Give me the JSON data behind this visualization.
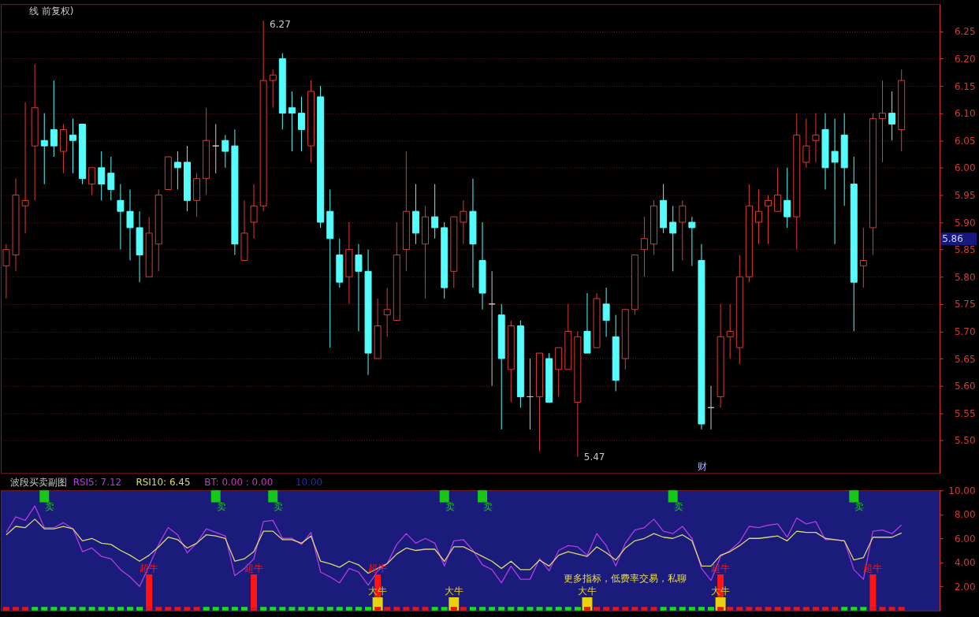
{
  "chart_data": [
    {
      "type": "candlestick",
      "title": "线 前复权)",
      "categories": [
        null,
        null,
        null,
        null,
        null,
        null,
        null,
        null,
        null,
        null,
        null,
        null,
        null,
        null,
        null,
        null,
        null,
        null,
        null,
        null,
        null,
        null,
        null,
        null,
        null,
        null,
        null,
        null,
        null,
        null,
        null,
        null,
        null,
        null,
        null,
        null,
        null,
        null,
        null,
        null,
        null,
        null,
        null,
        null,
        null,
        null,
        null,
        null,
        null,
        null,
        null,
        null,
        null,
        null,
        null,
        null,
        null,
        null,
        null,
        null,
        null,
        null,
        null,
        null,
        null,
        null,
        null,
        null,
        null,
        null,
        null,
        null,
        null,
        null,
        null,
        null,
        null,
        null,
        null,
        null,
        null,
        null,
        null,
        null,
        null,
        null,
        null,
        null,
        null,
        null,
        null,
        null,
        null,
        null,
        null
      ],
      "ohlc": [
        [
          5.82,
          5.86,
          5.76,
          5.85
        ],
        [
          5.84,
          5.98,
          5.81,
          5.95
        ],
        [
          5.93,
          6.12,
          5.88,
          5.94
        ],
        [
          6.04,
          6.19,
          5.94,
          6.11
        ],
        [
          6.05,
          6.1,
          5.97,
          6.04
        ],
        [
          6.07,
          6.16,
          6.02,
          6.04
        ],
        [
          6.03,
          6.08,
          5.99,
          6.07
        ],
        [
          6.06,
          6.09,
          5.99,
          6.05
        ],
        [
          6.08,
          6.08,
          5.97,
          5.98
        ],
        [
          5.97,
          6.0,
          5.95,
          6.0
        ],
        [
          6.0,
          6.03,
          5.94,
          5.97
        ],
        [
          5.99,
          6.02,
          5.94,
          5.96
        ],
        [
          5.94,
          5.97,
          5.85,
          5.92
        ],
        [
          5.92,
          5.96,
          5.83,
          5.89
        ],
        [
          5.89,
          5.92,
          5.79,
          5.84
        ],
        [
          5.8,
          5.91,
          5.8,
          5.88
        ],
        [
          5.86,
          5.96,
          5.81,
          5.95
        ],
        [
          5.96,
          6.02,
          5.96,
          6.02
        ],
        [
          6.01,
          6.03,
          5.96,
          6.0
        ],
        [
          6.01,
          6.04,
          5.92,
          5.94
        ],
        [
          5.94,
          5.99,
          5.91,
          5.98
        ],
        [
          5.98,
          6.11,
          5.95,
          6.05
        ],
        [
          6.04,
          6.08,
          5.99,
          6.04
        ],
        [
          6.05,
          6.06,
          6.0,
          6.03
        ],
        [
          6.04,
          6.07,
          5.84,
          5.86
        ],
        [
          5.83,
          5.94,
          5.83,
          5.88
        ],
        [
          5.9,
          5.97,
          5.87,
          5.93
        ],
        [
          5.93,
          6.27,
          5.92,
          6.16
        ],
        [
          6.16,
          6.18,
          6.11,
          6.17
        ],
        [
          6.2,
          6.21,
          6.07,
          6.1
        ],
        [
          6.11,
          6.14,
          6.03,
          6.1
        ],
        [
          6.1,
          6.13,
          6.03,
          6.07
        ],
        [
          6.04,
          6.16,
          6.01,
          6.14
        ],
        [
          6.13,
          6.15,
          5.89,
          5.9
        ],
        [
          5.92,
          5.96,
          5.67,
          5.87
        ],
        [
          5.84,
          5.87,
          5.78,
          5.79
        ],
        [
          5.8,
          5.9,
          5.75,
          5.85
        ],
        [
          5.84,
          5.86,
          5.7,
          5.81
        ],
        [
          5.81,
          5.85,
          5.62,
          5.66
        ],
        [
          5.65,
          5.76,
          5.65,
          5.71
        ],
        [
          5.73,
          5.78,
          5.69,
          5.74
        ],
        [
          5.72,
          5.9,
          5.72,
          5.84
        ],
        [
          5.85,
          6.03,
          5.81,
          5.92
        ],
        [
          5.92,
          5.97,
          5.86,
          5.88
        ],
        [
          5.86,
          5.93,
          5.76,
          5.91
        ],
        [
          5.91,
          5.97,
          5.87,
          5.89
        ],
        [
          5.89,
          5.9,
          5.76,
          5.78
        ],
        [
          5.81,
          5.91,
          5.78,
          5.91
        ],
        [
          5.9,
          5.94,
          5.86,
          5.92
        ],
        [
          5.92,
          5.98,
          5.78,
          5.86
        ],
        [
          5.83,
          5.9,
          5.74,
          5.77
        ],
        [
          5.75,
          5.81,
          5.6,
          5.75
        ],
        [
          5.73,
          5.75,
          5.52,
          5.65
        ],
        [
          5.63,
          5.72,
          5.57,
          5.71
        ],
        [
          5.71,
          5.72,
          5.56,
          5.58
        ],
        [
          5.58,
          5.65,
          5.52,
          5.58
        ],
        [
          5.58,
          5.66,
          5.48,
          5.66
        ],
        [
          5.65,
          5.66,
          5.57,
          5.57
        ],
        [
          5.63,
          5.67,
          5.58,
          5.67
        ],
        [
          5.63,
          5.75,
          5.63,
          5.7
        ],
        [
          5.57,
          5.7,
          5.47,
          5.69
        ],
        [
          5.7,
          5.77,
          5.66,
          5.66
        ],
        [
          5.67,
          5.77,
          5.67,
          5.76
        ],
        [
          5.75,
          5.78,
          5.69,
          5.72
        ],
        [
          5.69,
          5.73,
          5.59,
          5.61
        ],
        [
          5.65,
          5.74,
          5.63,
          5.74
        ],
        [
          5.74,
          5.84,
          5.73,
          5.84
        ],
        [
          5.85,
          5.91,
          5.8,
          5.87
        ],
        [
          5.86,
          5.94,
          5.84,
          5.93
        ],
        [
          5.94,
          5.97,
          5.88,
          5.89
        ],
        [
          5.9,
          5.93,
          5.81,
          5.88
        ],
        [
          5.9,
          5.94,
          5.83,
          5.93
        ],
        [
          5.9,
          5.91,
          5.82,
          5.89
        ],
        [
          5.83,
          5.86,
          5.52,
          5.53
        ],
        [
          5.56,
          5.6,
          5.52,
          5.56
        ],
        [
          5.58,
          5.75,
          5.56,
          5.69
        ],
        [
          5.69,
          5.75,
          5.65,
          5.7
        ],
        [
          5.67,
          5.84,
          5.64,
          5.8
        ],
        [
          5.8,
          5.97,
          5.79,
          5.93
        ],
        [
          5.9,
          5.96,
          5.86,
          5.92
        ],
        [
          5.93,
          5.95,
          5.86,
          5.94
        ],
        [
          5.92,
          6.0,
          5.92,
          5.95
        ],
        [
          5.94,
          6.0,
          5.89,
          5.91
        ],
        [
          5.91,
          6.1,
          5.85,
          6.06
        ],
        [
          6.01,
          6.09,
          6.0,
          6.04
        ],
        [
          6.05,
          6.1,
          6.01,
          6.06
        ],
        [
          6.07,
          6.1,
          5.96,
          6.0
        ],
        [
          6.03,
          6.09,
          5.86,
          6.01
        ],
        [
          6.06,
          6.1,
          5.93,
          6.0
        ],
        [
          5.97,
          6.02,
          5.7,
          5.79
        ],
        [
          5.82,
          5.89,
          5.78,
          5.83
        ],
        [
          5.89,
          6.1,
          5.84,
          6.09
        ],
        [
          6.09,
          6.16,
          6.01,
          6.1
        ],
        [
          6.1,
          6.14,
          6.05,
          6.08
        ],
        [
          6.07,
          6.18,
          6.03,
          6.16
        ]
      ],
      "colors": [
        "#dc3c34",
        "#dc3c34",
        "#dc3c34",
        "#dc3c34",
        "#54fcfc",
        "#54fcfc",
        "#dc3c34",
        "#54fcfc",
        "#54fcfc",
        "#dc3c34",
        "#54fcfc",
        "#54fcfc",
        "#54fcfc",
        "#54fcfc",
        "#54fcfc",
        "#dc3c34",
        "#dc3c34",
        "#dc3c34",
        "#54fcfc",
        "#54fcfc",
        "#dc3c34",
        "#dc3c34",
        "#c8c8c8",
        "#54fcfc",
        "#54fcfc",
        "#dc3c34",
        "#dc3c34",
        "#dc3c34",
        "#dc3c34",
        "#54fcfc",
        "#54fcfc",
        "#54fcfc",
        "#dc3c34",
        "#54fcfc",
        "#54fcfc",
        "#54fcfc",
        "#dc3c34",
        "#54fcfc",
        "#54fcfc",
        "#dc3c34",
        "#dc3c34",
        "#dc3c34",
        "#dc3c34",
        "#54fcfc",
        "#dc3c34",
        "#54fcfc",
        "#54fcfc",
        "#dc3c34",
        "#dc3c34",
        "#54fcfc",
        "#54fcfc",
        "#c8c8c8",
        "#54fcfc",
        "#dc3c34",
        "#54fcfc",
        "#c8c8c8",
        "#dc3c34",
        "#54fcfc",
        "#dc3c34",
        "#dc3c34",
        "#dc3c34",
        "#54fcfc",
        "#dc3c34",
        "#54fcfc",
        "#54fcfc",
        "#dc3c34",
        "#dc3c34",
        "#dc3c34",
        "#dc3c34",
        "#54fcfc",
        "#54fcfc",
        "#dc3c34",
        "#54fcfc",
        "#54fcfc",
        "#c8c8c8",
        "#dc3c34",
        "#dc3c34",
        "#dc3c34",
        "#dc3c34",
        "#dc3c34",
        "#dc3c34",
        "#dc3c34",
        "#54fcfc",
        "#dc3c34",
        "#dc3c34",
        "#dc3c34",
        "#54fcfc",
        "#54fcfc",
        "#54fcfc",
        "#54fcfc",
        "#dc3c34",
        "#dc3c34",
        "#dc3c34",
        "#54fcfc",
        "#dc3c34"
      ],
      "ylim": [
        5.44,
        6.3
      ],
      "yticks": [
        {
          "value": 5.5,
          "label": "5.50"
        },
        5.55,
        {
          "value": 5.6,
          "label": "5.60"
        },
        5.65,
        {
          "value": 5.7,
          "label": "5.70"
        },
        5.75,
        {
          "value": 5.8,
          "label": "5.80"
        },
        5.85,
        {
          "value": 5.9,
          "label": "5.90"
        },
        5.95,
        {
          "value": 6.0,
          "label": "6.00"
        },
        6.05,
        {
          "value": 6.1,
          "label": "6.10"
        },
        6.15,
        {
          "value": 6.2,
          "label": "6.20"
        },
        6.25
      ],
      "grid": "y",
      "tick_labels": "y",
      "annotations": [
        "6.27",
        "5.47",
        "5.86",
        "财"
      ]
    },
    {
      "type": "line",
      "title": "波段买卖副图",
      "categories": [
        null,
        null,
        null,
        null,
        null,
        null,
        null,
        null,
        null,
        null,
        null,
        null,
        null,
        null,
        null,
        null,
        null,
        null,
        null,
        null,
        null,
        null,
        null,
        null,
        null,
        null,
        null,
        null,
        null,
        null,
        null,
        null,
        null,
        null,
        null,
        null,
        null,
        null,
        null,
        null,
        null,
        null,
        null,
        null,
        null,
        null,
        null,
        null,
        null,
        null,
        null,
        null,
        null,
        null,
        null,
        null,
        null,
        null,
        null,
        null,
        null,
        null,
        null,
        null,
        null,
        null,
        null,
        null,
        null,
        null,
        null,
        null,
        null,
        null,
        null,
        null,
        null,
        null,
        null,
        null,
        null,
        null,
        null,
        null,
        null,
        null,
        null,
        null,
        null,
        null,
        null,
        null,
        null,
        null,
        null
      ],
      "series": [
        {
          "name": "RSI5: 7.12",
          "type": "line",
          "color": "#b43ce6",
          "values": [
            6.5,
            7.8,
            7.5,
            8.7,
            6.9,
            6.9,
            7.3,
            6.8,
            4.9,
            5.2,
            4.5,
            4.3,
            3.4,
            2.8,
            2.0,
            3.7,
            5.5,
            6.9,
            6.3,
            4.8,
            5.6,
            6.8,
            6.5,
            6.2,
            2.9,
            3.5,
            4.3,
            7.4,
            7.5,
            6.0,
            6.0,
            5.5,
            6.5,
            3.2,
            2.8,
            2.3,
            3.5,
            3.2,
            2.1,
            3.3,
            3.9,
            5.5,
            6.4,
            5.6,
            6.0,
            5.6,
            3.7,
            5.8,
            5.9,
            5.0,
            3.8,
            3.4,
            2.3,
            3.7,
            2.6,
            2.6,
            4.3,
            3.3,
            5.0,
            5.4,
            5.3,
            4.6,
            6.4,
            5.4,
            3.7,
            5.6,
            6.7,
            6.9,
            7.6,
            6.6,
            6.4,
            7.0,
            6.0,
            3.5,
            2.5,
            4.5,
            5.0,
            5.7,
            7.0,
            6.9,
            7.1,
            7.2,
            6.1,
            7.7,
            7.2,
            7.4,
            5.9,
            5.9,
            5.8,
            3.4,
            2.6,
            6.6,
            6.7,
            6.4,
            7.12
          ]
        },
        {
          "name": "RSI10: 6.45",
          "type": "line",
          "color": "#dcd870",
          "values": [
            6.3,
            7.0,
            6.9,
            7.6,
            6.8,
            6.8,
            7.0,
            6.8,
            5.8,
            6.0,
            5.6,
            5.5,
            5.0,
            4.6,
            4.1,
            4.6,
            5.3,
            6.1,
            5.9,
            5.2,
            5.6,
            6.3,
            6.2,
            6.0,
            4.1,
            4.3,
            4.9,
            6.6,
            6.6,
            5.9,
            5.9,
            5.6,
            6.2,
            4.1,
            3.9,
            3.6,
            4.1,
            3.8,
            3.1,
            3.5,
            3.9,
            4.7,
            5.2,
            5.0,
            5.1,
            5.1,
            4.1,
            5.3,
            5.3,
            4.9,
            4.5,
            4.1,
            3.5,
            4.1,
            3.4,
            3.4,
            4.2,
            3.7,
            4.6,
            4.9,
            4.7,
            4.5,
            5.3,
            4.8,
            4.2,
            5.2,
            5.8,
            6.0,
            6.4,
            6.1,
            6.0,
            6.3,
            5.8,
            3.7,
            3.7,
            4.6,
            4.9,
            5.4,
            6.0,
            6.0,
            6.1,
            6.2,
            5.8,
            6.6,
            6.5,
            6.5,
            6.0,
            5.9,
            5.8,
            4.2,
            4.4,
            6.1,
            6.1,
            6.1,
            6.45
          ]
        },
        {
          "type": "bar",
          "color": "#ff1414",
          "values": [
            null,
            null,
            null,
            null,
            null,
            null,
            null,
            null,
            null,
            null,
            null,
            null,
            null,
            null,
            null,
            3.0,
            null,
            null,
            null,
            null,
            null,
            null,
            null,
            null,
            null,
            null,
            3.0,
            null,
            null,
            null,
            null,
            null,
            null,
            null,
            null,
            null,
            null,
            null,
            null,
            3.0,
            null,
            null,
            null,
            null,
            null,
            null,
            null,
            null,
            null,
            null,
            null,
            null,
            null,
            null,
            null,
            null,
            null,
            null,
            null,
            null,
            null,
            null,
            null,
            null,
            null,
            null,
            null,
            null,
            null,
            null,
            null,
            null,
            null,
            null,
            null,
            3.0,
            null,
            null,
            null,
            null,
            null,
            null,
            null,
            null,
            null,
            null,
            null,
            null,
            null,
            null,
            null,
            3.0,
            null,
            null,
            null
          ],
          "value_labels": [
            null,
            null,
            null,
            null,
            null,
            null,
            null,
            null,
            null,
            null,
            null,
            null,
            null,
            null,
            null,
            "超牛",
            null,
            null,
            null,
            null,
            null,
            null,
            null,
            null,
            null,
            null,
            "超牛",
            null,
            null,
            null,
            null,
            null,
            null,
            null,
            null,
            null,
            null,
            null,
            null,
            "超牛",
            null,
            null,
            null,
            null,
            null,
            null,
            null,
            null,
            null,
            null,
            null,
            null,
            null,
            null,
            null,
            null,
            null,
            null,
            null,
            null,
            null,
            null,
            null,
            null,
            null,
            null,
            null,
            null,
            null,
            null,
            null,
            null,
            null,
            null,
            null,
            "超牛",
            null,
            null,
            null,
            null,
            null,
            null,
            null,
            null,
            null,
            null,
            null,
            null,
            null,
            null,
            null,
            "超牛",
            null,
            null,
            null
          ]
        },
        {
          "type": "bar",
          "color": "#e8d20c",
          "values": [
            null,
            null,
            null,
            null,
            null,
            null,
            null,
            null,
            null,
            null,
            null,
            null,
            null,
            null,
            null,
            null,
            null,
            null,
            null,
            null,
            null,
            null,
            null,
            null,
            null,
            null,
            null,
            null,
            null,
            null,
            null,
            null,
            null,
            null,
            null,
            null,
            null,
            null,
            null,
            1.1,
            null,
            null,
            null,
            null,
            null,
            null,
            null,
            1.1,
            null,
            null,
            null,
            null,
            null,
            null,
            null,
            null,
            null,
            null,
            null,
            null,
            null,
            1.1,
            null,
            null,
            null,
            null,
            null,
            null,
            null,
            null,
            null,
            null,
            null,
            null,
            null,
            1.1,
            null,
            null,
            null,
            null,
            null,
            null,
            null,
            null,
            null,
            null,
            null,
            null,
            null,
            null,
            null,
            null,
            null,
            null,
            null
          ],
          "value_labels": [
            null,
            null,
            null,
            null,
            null,
            null,
            null,
            null,
            null,
            null,
            null,
            null,
            null,
            null,
            null,
            null,
            null,
            null,
            null,
            null,
            null,
            null,
            null,
            null,
            null,
            null,
            null,
            null,
            null,
            null,
            null,
            null,
            null,
            null,
            null,
            null,
            null,
            null,
            null,
            "大牛",
            null,
            null,
            null,
            null,
            null,
            null,
            null,
            "大牛",
            null,
            null,
            null,
            null,
            null,
            null,
            null,
            null,
            null,
            null,
            null,
            null,
            null,
            "大牛",
            null,
            null,
            null,
            null,
            null,
            null,
            null,
            null,
            null,
            null,
            null,
            null,
            null,
            "大牛",
            null,
            null,
            null,
            null,
            null,
            null,
            null,
            null,
            null,
            null,
            null,
            null,
            null,
            null,
            null,
            null,
            null,
            null,
            null
          ]
        },
        {
          "type": "bar",
          "color": "#18c818",
          "values": [
            null,
            null,
            null,
            null,
            1.0,
            null,
            null,
            null,
            null,
            null,
            null,
            null,
            null,
            null,
            null,
            null,
            null,
            null,
            null,
            null,
            null,
            null,
            1.0,
            null,
            null,
            null,
            null,
            null,
            1.0,
            null,
            null,
            null,
            null,
            null,
            null,
            null,
            null,
            null,
            null,
            null,
            null,
            null,
            null,
            null,
            null,
            null,
            1.0,
            null,
            null,
            null,
            1.0,
            null,
            null,
            null,
            null,
            null,
            null,
            null,
            null,
            null,
            null,
            null,
            null,
            null,
            null,
            null,
            null,
            null,
            null,
            null,
            1.0,
            null,
            null,
            null,
            null,
            null,
            null,
            null,
            null,
            null,
            null,
            null,
            null,
            null,
            null,
            null,
            null,
            null,
            null,
            1.0,
            null,
            null,
            null,
            null,
            null
          ],
          "base": [
            null,
            null,
            null,
            null,
            9.0,
            null,
            null,
            null,
            null,
            null,
            null,
            null,
            null,
            null,
            null,
            null,
            null,
            null,
            null,
            null,
            null,
            null,
            9.0,
            null,
            null,
            null,
            null,
            null,
            9.0,
            null,
            null,
            null,
            null,
            null,
            null,
            null,
            null,
            null,
            null,
            null,
            null,
            null,
            null,
            null,
            null,
            null,
            9.0,
            null,
            null,
            null,
            9.0,
            null,
            null,
            null,
            null,
            null,
            null,
            null,
            null,
            null,
            null,
            null,
            null,
            null,
            null,
            null,
            null,
            null,
            null,
            null,
            9.0,
            null,
            null,
            null,
            null,
            null,
            null,
            null,
            null,
            null,
            null,
            null,
            null,
            null,
            null,
            null,
            null,
            null,
            null,
            9.0,
            null,
            null,
            null,
            null,
            null
          ],
          "value_labels": [
            null,
            null,
            null,
            null,
            "卖",
            null,
            null,
            null,
            null,
            null,
            null,
            null,
            null,
            null,
            null,
            null,
            null,
            null,
            null,
            null,
            null,
            null,
            "卖",
            null,
            null,
            null,
            null,
            null,
            "卖",
            null,
            null,
            null,
            null,
            null,
            null,
            null,
            null,
            null,
            null,
            null,
            null,
            null,
            null,
            null,
            null,
            null,
            "卖",
            null,
            null,
            null,
            "卖",
            null,
            null,
            null,
            null,
            null,
            null,
            null,
            null,
            null,
            null,
            null,
            null,
            null,
            null,
            null,
            null,
            null,
            null,
            null,
            "卖",
            null,
            null,
            null,
            null,
            null,
            null,
            null,
            null,
            null,
            null,
            null,
            null,
            null,
            null,
            null,
            null,
            null,
            null,
            "卖",
            null,
            null,
            null,
            null,
            null
          ]
        },
        {
          "type": "bar",
          "values": [
            0.3,
            0.3,
            0.3,
            0.3,
            0.3,
            0.3,
            0.3,
            0.3,
            0.3,
            0.3,
            0.3,
            0.3,
            0.3,
            0.3,
            0.3,
            0.3,
            0.3,
            0.3,
            0.3,
            0.3,
            0.3,
            0.3,
            0.3,
            0.3,
            0.3,
            0.3,
            0.3,
            0.3,
            0.3,
            0.3,
            0.3,
            0.3,
            0.3,
            0.3,
            0.3,
            0.3,
            0.3,
            0.3,
            0.3,
            0.3,
            0.3,
            0.3,
            0.3,
            0.3,
            0.3,
            0.3,
            0.3,
            0.3,
            0.3,
            0.3,
            0.3,
            0.3,
            0.3,
            0.3,
            0.3,
            0.3,
            0.3,
            0.3,
            0.3,
            0.3,
            0.3,
            0.3,
            0.3,
            0.3,
            0.3,
            0.3,
            0.3,
            0.3,
            0.3,
            0.3,
            0.3,
            0.3,
            0.3,
            0.3,
            0.3,
            0.3,
            0.3,
            0.3,
            0.3,
            0.3,
            0.3,
            0.3,
            0.3,
            0.3,
            0.3,
            0.3,
            0.3,
            0.3,
            0.3,
            0.3,
            0.3,
            0.3,
            0.3,
            0.3,
            0.3
          ],
          "colors": [
            "#e01818",
            "#e01818",
            "#e01818",
            "#18e018",
            "#18e018",
            "#18e018",
            "#18e018",
            "#18e018",
            "#18e018",
            "#18e018",
            "#18e018",
            "#18e018",
            "#18e018",
            "#18e018",
            "#18e018",
            "#e01818",
            "#e01818",
            "#e01818",
            "#e01818",
            "#e01818",
            "#e01818",
            "#18e018",
            "#18e018",
            "#18e018",
            "#18e018",
            "#18e018",
            "#e01818",
            "#18e018",
            "#18e018",
            "#18e018",
            "#18e018",
            "#18e018",
            "#18e018",
            "#18e018",
            "#18e018",
            "#18e018",
            "#18e018",
            "#18e018",
            "#18e018",
            "#e01818",
            "#e01818",
            "#e01818",
            "#e01818",
            "#e01818",
            "#e01818",
            "#18e018",
            "#18e018",
            "#e01818",
            "#e01818",
            "#18e018",
            "#18e018",
            "#18e018",
            "#18e018",
            "#18e018",
            "#18e018",
            "#18e018",
            "#18e018",
            "#18e018",
            "#18e018",
            "#18e018",
            "#18e018",
            "#e01818",
            "#e01818",
            "#e01818",
            "#e01818",
            "#e01818",
            "#e01818",
            "#e01818",
            "#e01818",
            "#18e018",
            "#18e018",
            "#18e018",
            "#18e018",
            "#18e018",
            "#18e018",
            "#e01818",
            "#e01818",
            "#e01818",
            "#e01818",
            "#e01818",
            "#e01818",
            "#e01818",
            "#e01818",
            "#e01818",
            "#e01818",
            "#e01818",
            "#e01818",
            "#e01818",
            "#18e018",
            "#18e018",
            "#18e018",
            "#e01818",
            "#e01818",
            "#e01818",
            "#e01818"
          ]
        }
      ],
      "ylim": [
        0,
        10
      ],
      "yticks": [
        {
          "value": 2,
          "label": "2.00"
        },
        {
          "value": 4,
          "label": "4.00"
        },
        {
          "value": 6,
          "label": "6.00"
        },
        {
          "value": 8,
          "label": "8.00"
        },
        {
          "value": 10,
          "label": "10.00"
        }
      ],
      "grid": false,
      "legend": "top left",
      "tick_labels": "y",
      "annotations": [
        "BT: 0.00 : 0.00",
        "10.00",
        "更多指标，低费率交易，私聊"
      ]
    }
  ]
}
